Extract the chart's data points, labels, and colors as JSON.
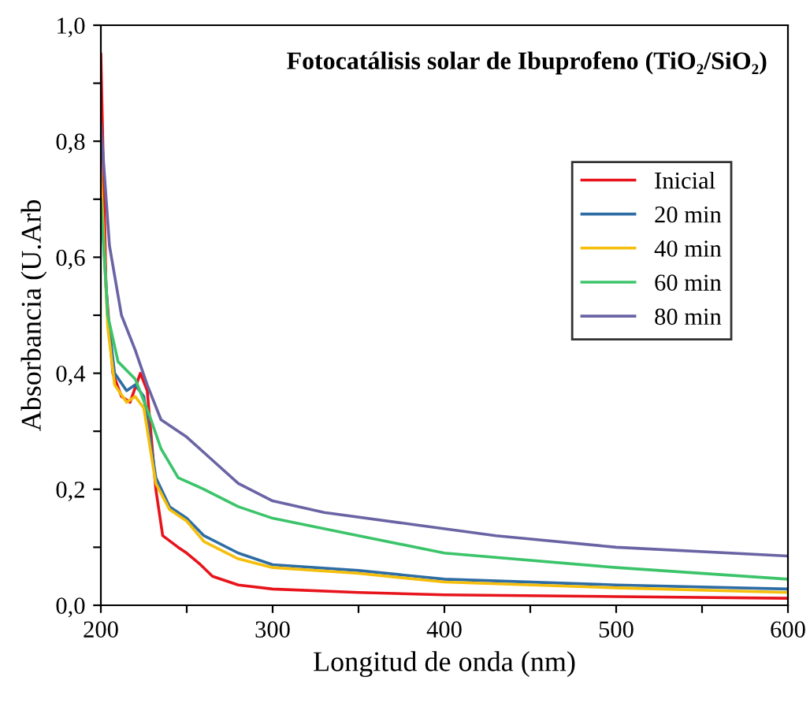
{
  "chart_data": {
    "type": "line",
    "title": "Fotocatálisis solar de Ibuprofeno (TiO₂/SiO₂)",
    "xlabel": "Longitud de onda (nm)",
    "ylabel": "Absorbancia (U.Arb",
    "xlim": [
      200,
      600
    ],
    "ylim": [
      0,
      1.0
    ],
    "xticks": [
      200,
      {
        "value": 250,
        "label": null
      },
      300,
      {
        "value": 350,
        "label": null
      },
      400,
      {
        "value": 450,
        "label": null
      },
      500,
      {
        "value": 550,
        "label": null
      },
      600
    ],
    "yticks": [
      {
        "value": 0,
        "label": "0,0"
      },
      {
        "value": 0.1,
        "label": null
      },
      {
        "value": 0.2,
        "label": "0,2"
      },
      {
        "value": 0.3,
        "label": null
      },
      {
        "value": 0.4,
        "label": "0,4"
      },
      {
        "value": 0.5,
        "label": null
      },
      {
        "value": 0.6,
        "label": "0,6"
      },
      {
        "value": 0.7,
        "label": null
      },
      {
        "value": 0.8,
        "label": "0,8"
      },
      {
        "value": 0.9,
        "label": null
      },
      {
        "value": 1.0,
        "label": "1,0"
      }
    ],
    "legend": "top right",
    "grid": false,
    "marker": "none",
    "line_style": "solid",
    "series": [
      {
        "name": "Inicial",
        "color": "#e8141c",
        "x": [
          200,
          203,
          207,
          212,
          217,
          223,
          227,
          232,
          236,
          245,
          250,
          258,
          265,
          280,
          300,
          350,
          400,
          500,
          600
        ],
        "values": [
          0.95,
          0.55,
          0.4,
          0.36,
          0.35,
          0.4,
          0.37,
          0.2,
          0.12,
          0.1,
          0.09,
          0.07,
          0.05,
          0.035,
          0.028,
          0.022,
          0.018,
          0.015,
          0.012
        ]
      },
      {
        "name": "20 min",
        "color": "#2e6da4",
        "x": [
          200,
          204,
          208,
          215,
          220,
          225,
          232,
          240,
          250,
          260,
          280,
          300,
          350,
          400,
          500,
          600
        ],
        "values": [
          0.72,
          0.5,
          0.4,
          0.37,
          0.38,
          0.36,
          0.22,
          0.17,
          0.15,
          0.12,
          0.09,
          0.07,
          0.06,
          0.045,
          0.035,
          0.028
        ]
      },
      {
        "name": "40 min",
        "color": "#f5be0b",
        "x": [
          200,
          204,
          208,
          215,
          220,
          225,
          232,
          240,
          250,
          260,
          280,
          300,
          350,
          400,
          500,
          600
        ],
        "values": [
          0.74,
          0.48,
          0.38,
          0.35,
          0.36,
          0.34,
          0.21,
          0.165,
          0.145,
          0.11,
          0.08,
          0.065,
          0.055,
          0.04,
          0.03,
          0.022
        ]
      },
      {
        "name": "60 min",
        "color": "#3cc46a",
        "x": [
          200,
          204,
          210,
          220,
          228,
          235,
          245,
          260,
          280,
          300,
          350,
          400,
          500,
          600
        ],
        "values": [
          0.7,
          0.5,
          0.42,
          0.39,
          0.33,
          0.27,
          0.22,
          0.2,
          0.17,
          0.15,
          0.12,
          0.09,
          0.065,
          0.045
        ]
      },
      {
        "name": "80 min",
        "color": "#6a64a4",
        "x": [
          200,
          205,
          212,
          220,
          227,
          235,
          250,
          265,
          280,
          300,
          330,
          380,
          430,
          500,
          600
        ],
        "values": [
          0.83,
          0.62,
          0.5,
          0.44,
          0.38,
          0.32,
          0.29,
          0.25,
          0.21,
          0.18,
          0.16,
          0.14,
          0.12,
          0.1,
          0.085
        ]
      }
    ]
  }
}
